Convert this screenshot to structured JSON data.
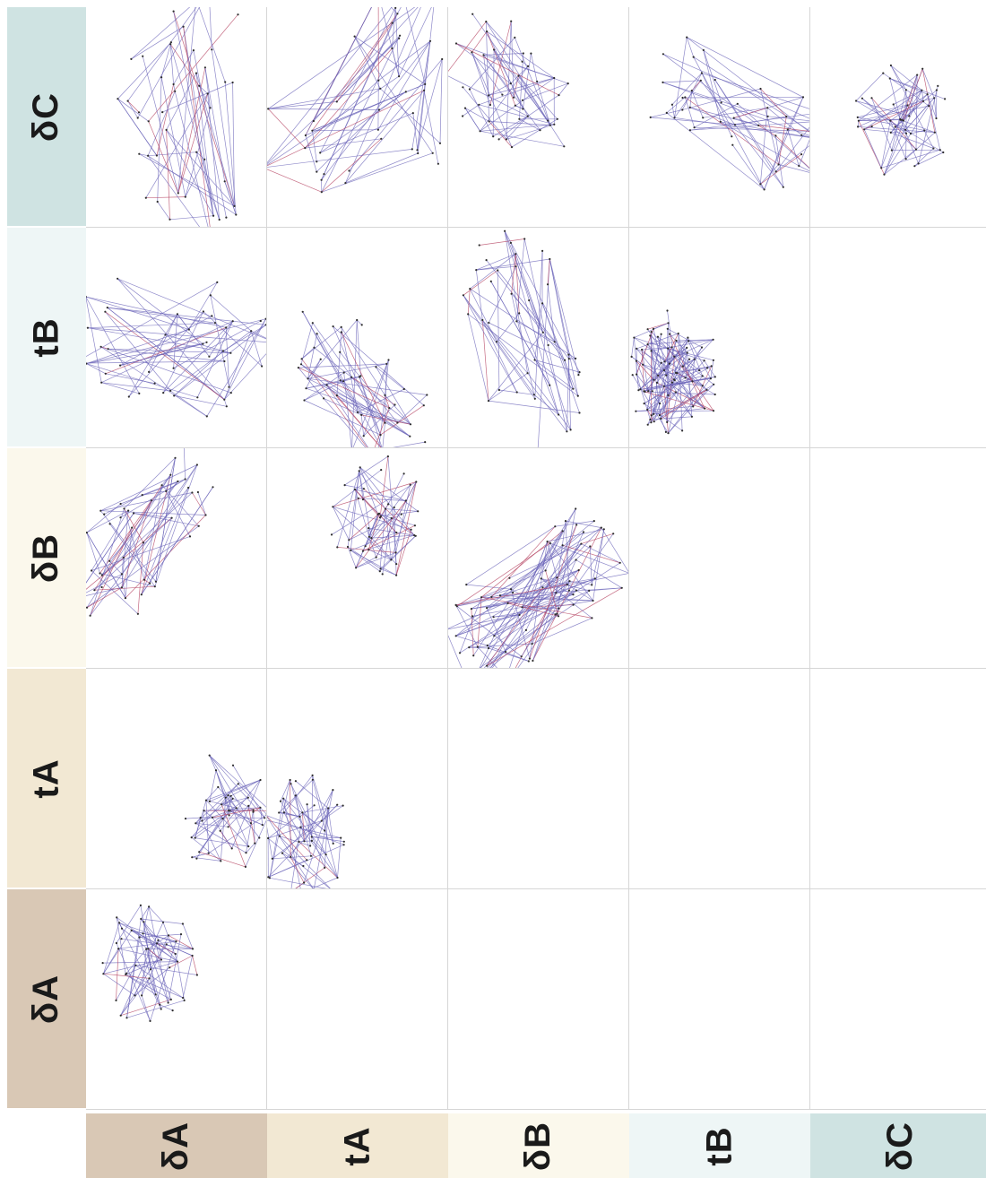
{
  "row_labels": [
    "δC",
    "tB",
    "δB",
    "tA",
    "δA"
  ],
  "column_labels": [
    "δA",
    "tA",
    "δB",
    "tB",
    "δC"
  ],
  "label_colors": {
    "δA": "#d9c8b5",
    "tA": "#f2e8d3",
    "δB": "#fbf8ec",
    "tB": "#eef6f6",
    "δC": "#cfe3e2"
  },
  "edge_colors": {
    "primary": "#6a63b8",
    "secondary": "#b23a5a",
    "node": "#2d2d2d"
  },
  "filled_cells": [
    [
      "δC",
      "δA"
    ],
    [
      "δC",
      "tA"
    ],
    [
      "δC",
      "δB"
    ],
    [
      "δC",
      "tB"
    ],
    [
      "δC",
      "δC"
    ],
    [
      "tB",
      "δA"
    ],
    [
      "tB",
      "tA"
    ],
    [
      "tB",
      "δB"
    ],
    [
      "tB",
      "tB"
    ],
    [
      "δB",
      "δA"
    ],
    [
      "δB",
      "tA"
    ],
    [
      "δB",
      "δB"
    ],
    [
      "tA",
      "δA"
    ],
    [
      "tA",
      "tA"
    ],
    [
      "δA",
      "δA"
    ]
  ]
}
